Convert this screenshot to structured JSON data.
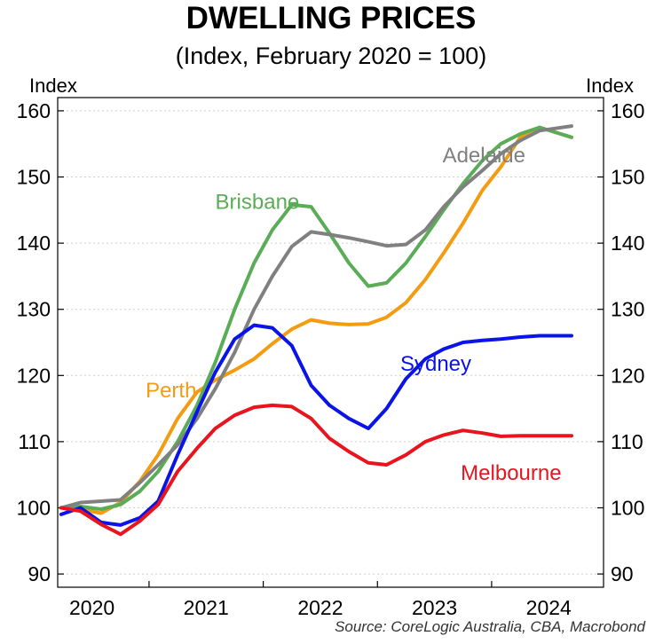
{
  "chart_data": {
    "type": "line",
    "title": "DWELLING PRICES",
    "subtitle": "(Index, February 2020 = 100)",
    "ylabel_left": "Index",
    "ylabel_right": "Index",
    "source": "Source: CoreLogic Australia, CBA, Macrobond",
    "ylim": [
      88,
      162
    ],
    "yticks": [
      90,
      100,
      110,
      120,
      130,
      140,
      150,
      160
    ],
    "xlim": [
      2019.7,
      2024.48
    ],
    "xticks": [
      {
        "label": "2020",
        "pos": 2020.0
      },
      {
        "label": "2021",
        "pos": 2021.0
      },
      {
        "label": "2022",
        "pos": 2022.0
      },
      {
        "label": "2023",
        "pos": 2023.0
      },
      {
        "label": "2024",
        "pos": 2024.0
      }
    ],
    "year_boundaries": [
      2020.5,
      2021.5,
      2022.5,
      2023.5
    ],
    "grid": true,
    "series": [
      {
        "name": "Perth",
        "color": "#f39c12",
        "points": [
          [
            2019.73,
            100.0
          ],
          [
            2019.9,
            99.8
          ],
          [
            2020.08,
            99.2
          ],
          [
            2020.25,
            100.8
          ],
          [
            2020.42,
            104.0
          ],
          [
            2020.58,
            108.0
          ],
          [
            2020.75,
            113.5
          ],
          [
            2020.92,
            117.5
          ],
          [
            2021.08,
            119.3
          ],
          [
            2021.25,
            120.8
          ],
          [
            2021.42,
            122.5
          ],
          [
            2021.58,
            124.8
          ],
          [
            2021.75,
            127.0
          ],
          [
            2021.92,
            128.4
          ],
          [
            2022.08,
            127.9
          ],
          [
            2022.25,
            127.7
          ],
          [
            2022.42,
            127.8
          ],
          [
            2022.58,
            128.8
          ],
          [
            2022.75,
            131.0
          ],
          [
            2022.92,
            134.5
          ],
          [
            2023.08,
            138.5
          ],
          [
            2023.25,
            143.0
          ],
          [
            2023.42,
            148.0
          ],
          [
            2023.58,
            151.5
          ],
          [
            2023.75,
            156.0
          ],
          [
            2023.92,
            157.5
          ],
          [
            2024.2,
            156.0
          ]
        ]
      },
      {
        "name": "Brisbane",
        "color": "#5aac57",
        "points": [
          [
            2019.73,
            100.0
          ],
          [
            2019.9,
            100.2
          ],
          [
            2020.08,
            99.8
          ],
          [
            2020.25,
            100.5
          ],
          [
            2020.42,
            102.5
          ],
          [
            2020.58,
            105.5
          ],
          [
            2020.75,
            110.0
          ],
          [
            2020.92,
            115.5
          ],
          [
            2021.08,
            122.0
          ],
          [
            2021.25,
            130.0
          ],
          [
            2021.42,
            137.0
          ],
          [
            2021.58,
            142.0
          ],
          [
            2021.75,
            145.8
          ],
          [
            2021.92,
            145.5
          ],
          [
            2022.08,
            141.5
          ],
          [
            2022.25,
            137.0
          ],
          [
            2022.42,
            133.5
          ],
          [
            2022.58,
            134.0
          ],
          [
            2022.75,
            137.0
          ],
          [
            2022.92,
            141.0
          ],
          [
            2023.08,
            145.0
          ],
          [
            2023.25,
            149.0
          ],
          [
            2023.42,
            152.5
          ],
          [
            2023.58,
            155.0
          ],
          [
            2023.75,
            156.5
          ],
          [
            2023.92,
            157.5
          ],
          [
            2024.2,
            156.0
          ]
        ]
      },
      {
        "name": "Adelaide",
        "color": "#808080",
        "points": [
          [
            2019.73,
            100.0
          ],
          [
            2019.9,
            100.8
          ],
          [
            2020.08,
            101.0
          ],
          [
            2020.25,
            101.2
          ],
          [
            2020.42,
            103.8
          ],
          [
            2020.58,
            106.5
          ],
          [
            2020.75,
            109.5
          ],
          [
            2020.92,
            113.5
          ],
          [
            2021.08,
            118.0
          ],
          [
            2021.25,
            123.5
          ],
          [
            2021.42,
            130.0
          ],
          [
            2021.58,
            135.0
          ],
          [
            2021.75,
            139.5
          ],
          [
            2021.92,
            141.7
          ],
          [
            2022.08,
            141.3
          ],
          [
            2022.25,
            140.8
          ],
          [
            2022.42,
            140.2
          ],
          [
            2022.58,
            139.6
          ],
          [
            2022.75,
            139.8
          ],
          [
            2022.92,
            142.0
          ],
          [
            2023.08,
            145.5
          ],
          [
            2023.25,
            148.5
          ],
          [
            2023.42,
            151.0
          ],
          [
            2023.58,
            153.5
          ],
          [
            2023.75,
            155.5
          ],
          [
            2023.92,
            157.0
          ],
          [
            2024.2,
            157.7
          ]
        ]
      },
      {
        "name": "Sydney",
        "color": "#0a14e6",
        "points": [
          [
            2019.73,
            99.0
          ],
          [
            2019.9,
            100.0
          ],
          [
            2020.08,
            97.8
          ],
          [
            2020.25,
            97.4
          ],
          [
            2020.42,
            98.5
          ],
          [
            2020.58,
            101.0
          ],
          [
            2020.75,
            108.0
          ],
          [
            2020.92,
            114.5
          ],
          [
            2021.08,
            120.5
          ],
          [
            2021.25,
            125.5
          ],
          [
            2021.42,
            127.6
          ],
          [
            2021.58,
            127.2
          ],
          [
            2021.75,
            124.5
          ],
          [
            2021.92,
            118.5
          ],
          [
            2022.08,
            115.5
          ],
          [
            2022.25,
            113.5
          ],
          [
            2022.42,
            112.0
          ],
          [
            2022.58,
            115.0
          ],
          [
            2022.75,
            119.5
          ],
          [
            2022.92,
            122.5
          ],
          [
            2023.08,
            124.0
          ],
          [
            2023.25,
            125.0
          ],
          [
            2023.42,
            125.3
          ],
          [
            2023.58,
            125.5
          ],
          [
            2023.75,
            125.8
          ],
          [
            2023.92,
            126.0
          ],
          [
            2024.2,
            126.0
          ]
        ]
      },
      {
        "name": "Melbourne",
        "color": "#e8141e",
        "points": [
          [
            2019.73,
            100.0
          ],
          [
            2019.9,
            99.5
          ],
          [
            2020.08,
            97.5
          ],
          [
            2020.25,
            96.0
          ],
          [
            2020.42,
            98.0
          ],
          [
            2020.58,
            100.5
          ],
          [
            2020.75,
            105.5
          ],
          [
            2020.92,
            109.0
          ],
          [
            2021.08,
            112.0
          ],
          [
            2021.25,
            114.0
          ],
          [
            2021.42,
            115.2
          ],
          [
            2021.58,
            115.5
          ],
          [
            2021.75,
            115.3
          ],
          [
            2021.92,
            113.5
          ],
          [
            2022.08,
            110.5
          ],
          [
            2022.25,
            108.5
          ],
          [
            2022.42,
            106.8
          ],
          [
            2022.58,
            106.5
          ],
          [
            2022.75,
            108.0
          ],
          [
            2022.92,
            110.0
          ],
          [
            2023.08,
            111.0
          ],
          [
            2023.25,
            111.7
          ],
          [
            2023.42,
            111.3
          ],
          [
            2023.58,
            110.8
          ],
          [
            2023.75,
            110.9
          ],
          [
            2023.92,
            110.9
          ],
          [
            2024.2,
            110.9
          ]
        ]
      }
    ],
    "series_labels": [
      {
        "name": "Adelaide",
        "color": "#808080",
        "x": 2023.07,
        "y": 152.2
      },
      {
        "name": "Brisbane",
        "color": "#5aac57",
        "x": 2021.08,
        "y": 145.2
      },
      {
        "name": "Perth",
        "color": "#f39c12",
        "x": 2020.47,
        "y": 116.7
      },
      {
        "name": "Sydney",
        "color": "#0a14e6",
        "x": 2022.7,
        "y": 120.7
      },
      {
        "name": "Melbourne",
        "color": "#e8141e",
        "x": 2023.23,
        "y": 104.2
      }
    ]
  }
}
